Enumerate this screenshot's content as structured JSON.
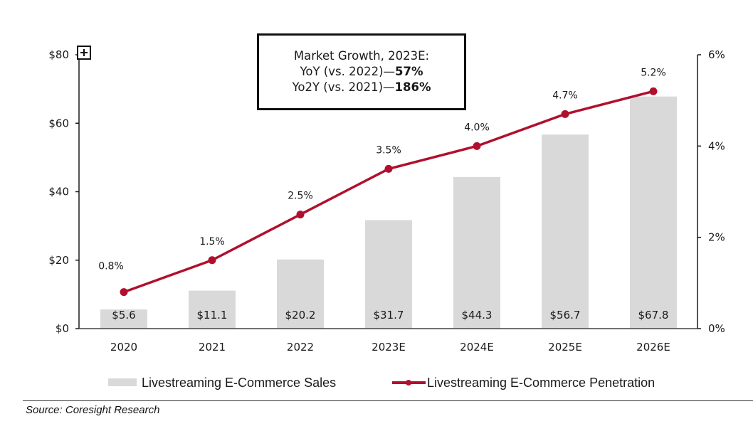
{
  "callout": {
    "title": "Market Growth, 2023E:",
    "line1_prefix": "YoY (vs. 2022)—",
    "line1_value": "57%",
    "line2_prefix": "Yo2Y (vs. 2021)—",
    "line2_value": "186%"
  },
  "source": "Source: Coresight Research",
  "colors": {
    "bar": "#d9d9d9",
    "line": "#b0102e",
    "axis": "#1a1a1a"
  },
  "chart_data": {
    "type": "bar",
    "categories": [
      "2020",
      "2021",
      "2022",
      "2023E",
      "2024E",
      "2025E",
      "2026E"
    ],
    "series": [
      {
        "name": "Livestreaming E-Commerce Sales",
        "type": "bar",
        "axis": "left",
        "values": [
          5.6,
          11.1,
          20.2,
          31.7,
          44.3,
          56.7,
          67.8
        ],
        "labels": [
          "$5.6",
          "$11.1",
          "$20.2",
          "$31.7",
          "$44.3",
          "$56.7",
          "$67.8"
        ]
      },
      {
        "name": "Livestreaming E-Commerce Penetration",
        "type": "line",
        "axis": "right",
        "values": [
          0.8,
          1.5,
          2.5,
          3.5,
          4.0,
          4.7,
          5.2
        ],
        "labels": [
          "0.8%",
          "1.5%",
          "2.5%",
          "3.5%",
          "4.0%",
          "4.7%",
          "5.2%"
        ]
      }
    ],
    "left_axis": {
      "range": [
        0,
        80
      ],
      "ticks": [
        0,
        20,
        40,
        60,
        80
      ],
      "tick_labels": [
        "$0",
        "$20",
        "$40",
        "$60",
        "$80"
      ]
    },
    "right_axis": {
      "range": [
        0,
        6
      ],
      "ticks": [
        0,
        2,
        4,
        6
      ],
      "tick_labels": [
        "0%",
        "2%",
        "4%",
        "6%"
      ]
    },
    "title": "",
    "xlabel": "",
    "ylabel": "",
    "grid": false,
    "legend_position": "bottom"
  }
}
